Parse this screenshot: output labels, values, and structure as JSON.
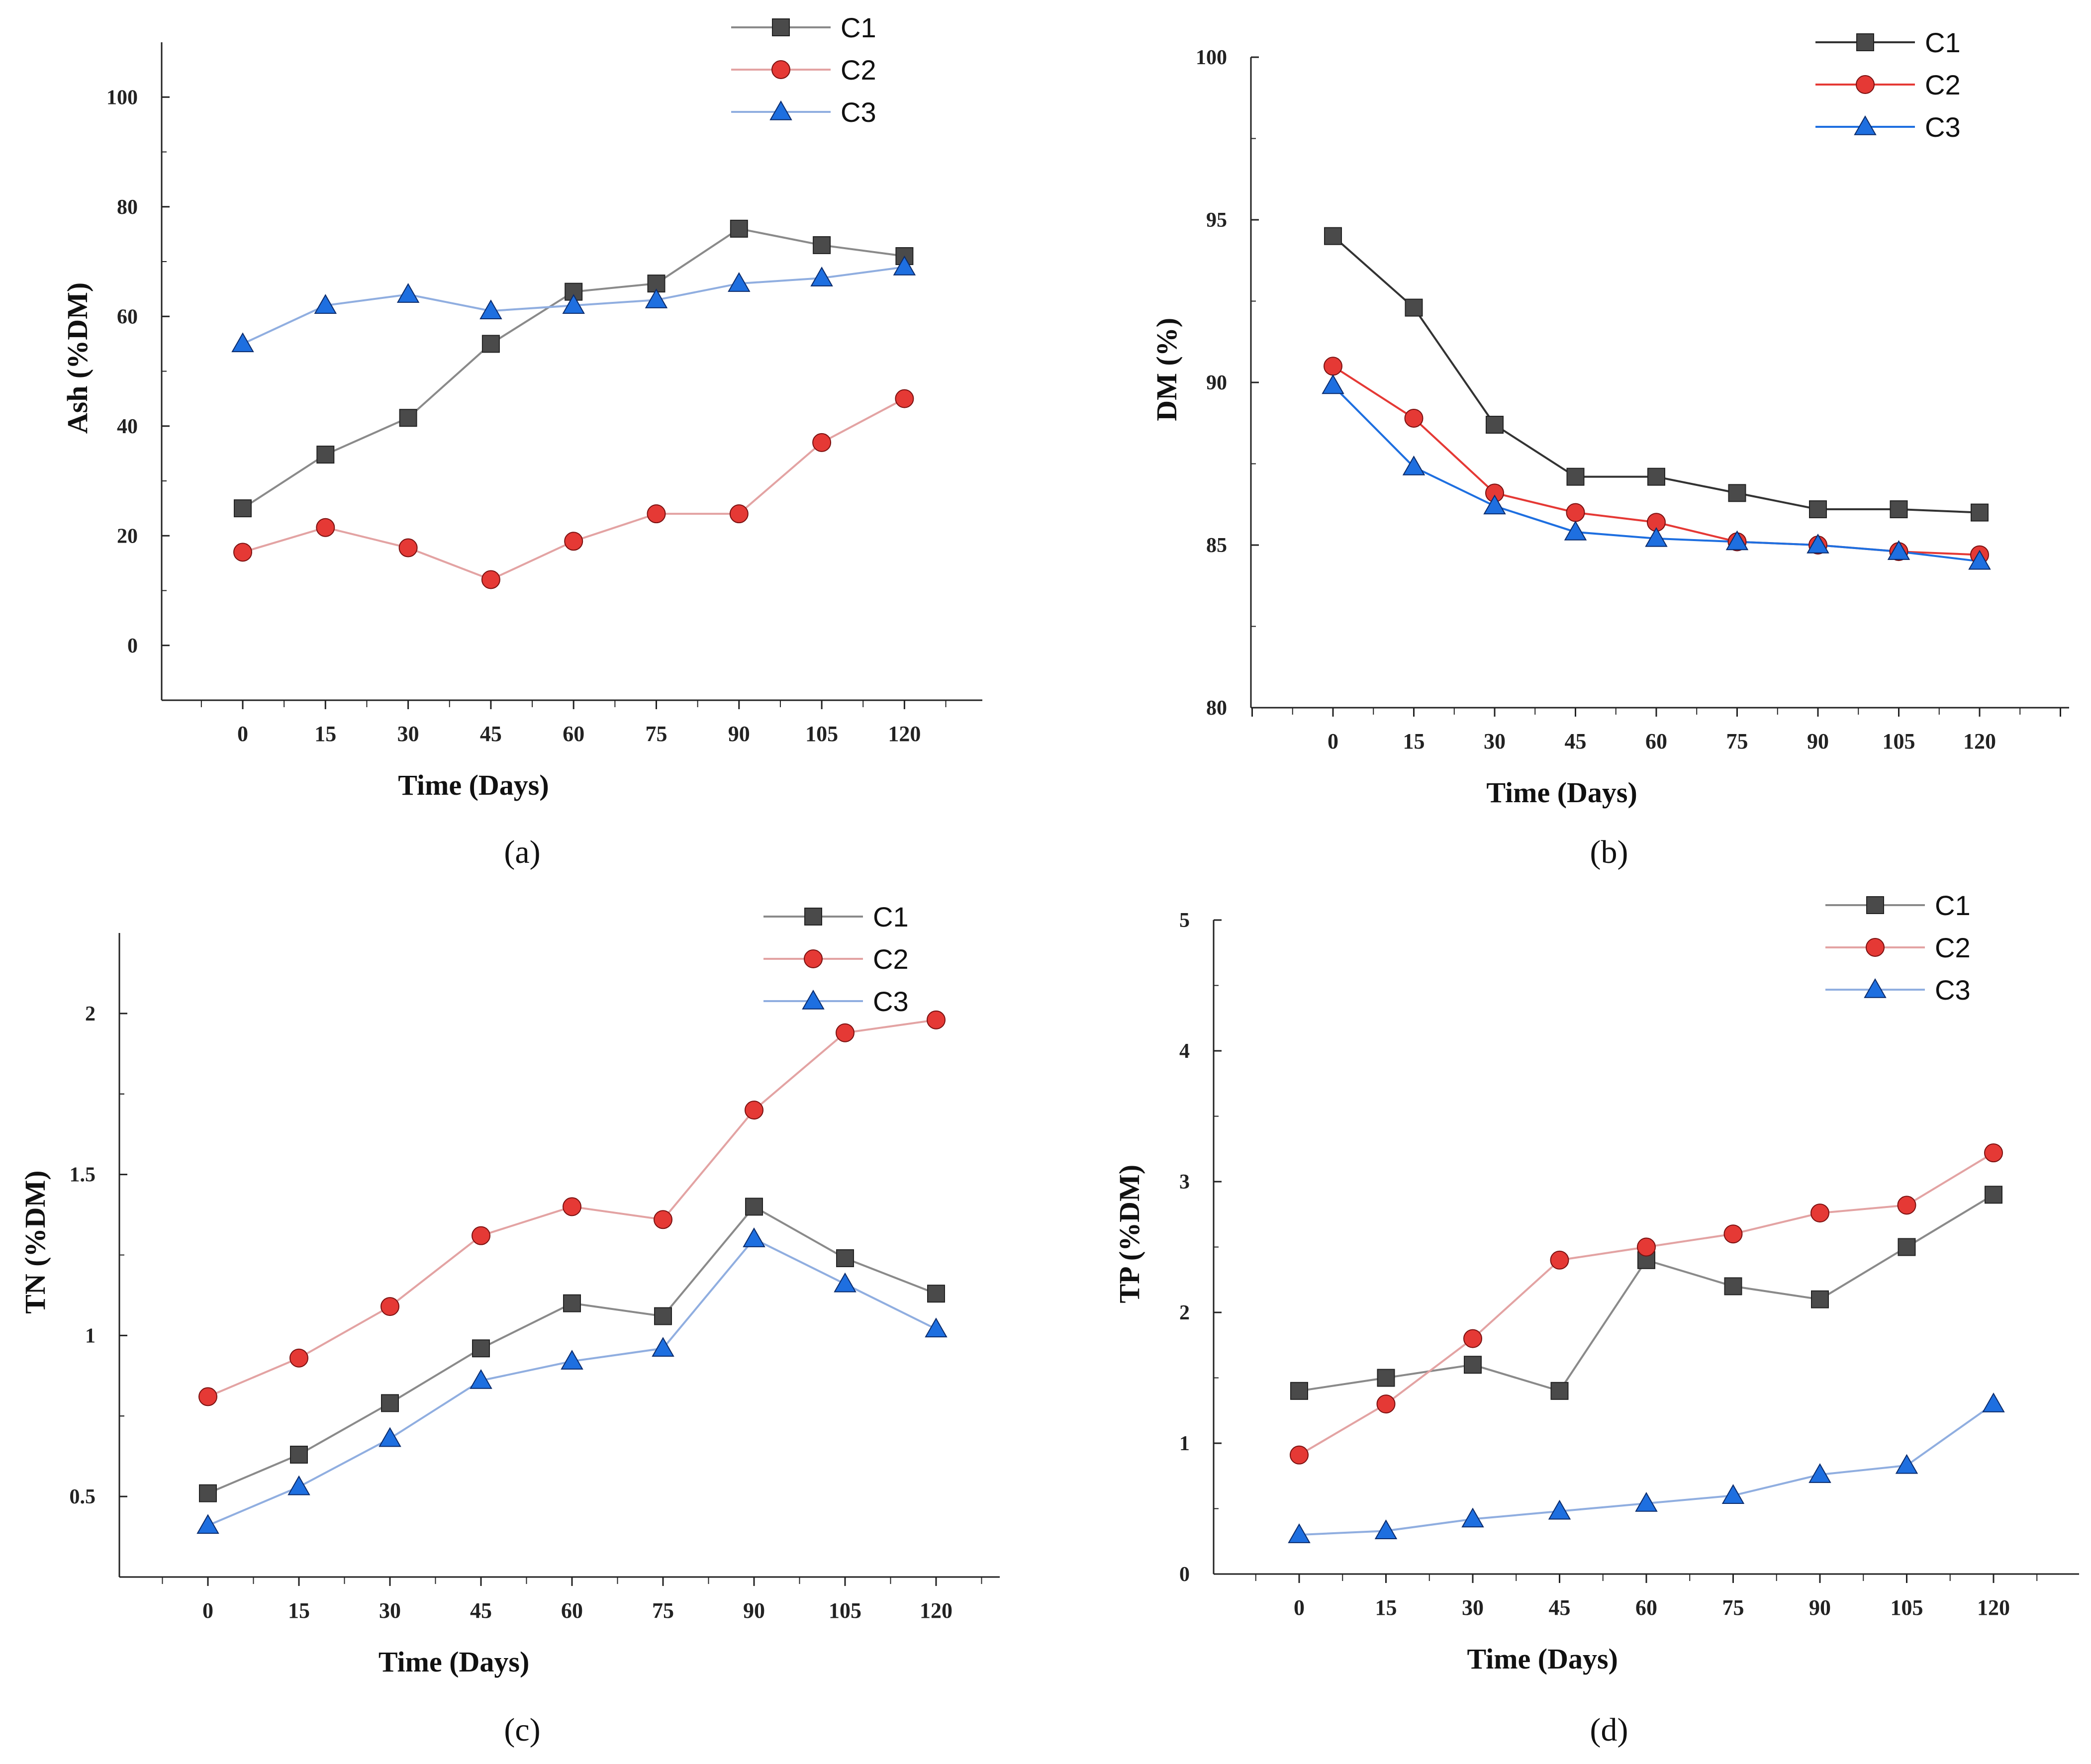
{
  "chart_data": [
    {
      "type": "line",
      "panel_label": "(a)",
      "xlabel": "Time (Days)",
      "ylabel": "Ash (%DM)",
      "categories": [
        "0",
        "15",
        "30",
        "45",
        "60",
        "75",
        "90",
        "105",
        "120"
      ],
      "ylim": [
        -10,
        110
      ],
      "yticks": [
        "0",
        "20",
        "40",
        "60",
        "80",
        "100"
      ],
      "legend_position": "top-right",
      "series": [
        {
          "name": "C1",
          "marker": "square",
          "line_color": "#8a8a8a",
          "marker_color": "#4a4a4a",
          "values": [
            25,
            34.8,
            41.5,
            55,
            64.5,
            66,
            76,
            73,
            71
          ]
        },
        {
          "name": "C2",
          "marker": "circle",
          "line_color": "#e3a3a3",
          "marker_color": "#e53935",
          "values": [
            17,
            21.5,
            17.8,
            12,
            19,
            24,
            24,
            37,
            45
          ]
        },
        {
          "name": "C3",
          "marker": "triangle",
          "line_color": "#90aee0",
          "marker_color": "#1e6fe0",
          "values": [
            55,
            62,
            64,
            61,
            62,
            63,
            66,
            67,
            69
          ]
        }
      ]
    },
    {
      "type": "line",
      "panel_label": "(b)",
      "xlabel": "Time (Days)",
      "ylabel": "DM (%)",
      "categories": [
        "0",
        "15",
        "30",
        "45",
        "60",
        "75",
        "90",
        "105",
        "120"
      ],
      "ylim": [
        80,
        100
      ],
      "yticks": [
        "80",
        "85",
        "90",
        "95",
        "100"
      ],
      "legend_position": "top-right",
      "series": [
        {
          "name": "C1",
          "marker": "square",
          "line_color": "#333333",
          "marker_color": "#4a4a4a",
          "values": [
            94.5,
            92.3,
            88.7,
            87.1,
            87.1,
            86.6,
            86.1,
            86.1,
            86
          ]
        },
        {
          "name": "C2",
          "marker": "circle",
          "line_color": "#e53935",
          "marker_color": "#e53935",
          "values": [
            90.5,
            88.9,
            86.6,
            86,
            85.7,
            85.1,
            85,
            84.8,
            84.7
          ]
        },
        {
          "name": "C3",
          "marker": "triangle",
          "line_color": "#1e6fe0",
          "marker_color": "#1e6fe0",
          "values": [
            89.9,
            87.4,
            86.2,
            85.4,
            85.2,
            85.1,
            85,
            84.8,
            84.5
          ]
        }
      ]
    },
    {
      "type": "line",
      "panel_label": "(c)",
      "xlabel": "Time (Days)",
      "ylabel": "TN (%DM)",
      "categories": [
        "0",
        "15",
        "30",
        "45",
        "60",
        "75",
        "90",
        "105",
        "120"
      ],
      "ylim": [
        0.25,
        2.25
      ],
      "yticks": [
        "0.5",
        "1",
        "1.5",
        "2"
      ],
      "legend_position": "top-right",
      "series": [
        {
          "name": "C1",
          "marker": "square",
          "line_color": "#8a8a8a",
          "marker_color": "#4a4a4a",
          "values": [
            0.51,
            0.63,
            0.79,
            0.96,
            1.1,
            1.06,
            1.4,
            1.24,
            1.13
          ]
        },
        {
          "name": "C2",
          "marker": "circle",
          "line_color": "#e3a3a3",
          "marker_color": "#e53935",
          "values": [
            0.81,
            0.93,
            1.09,
            1.31,
            1.4,
            1.36,
            1.7,
            1.94,
            1.98
          ]
        },
        {
          "name": "C3",
          "marker": "triangle",
          "line_color": "#90aee0",
          "marker_color": "#1e6fe0",
          "values": [
            0.41,
            0.53,
            0.68,
            0.86,
            0.92,
            0.96,
            1.3,
            1.16,
            1.02
          ]
        }
      ]
    },
    {
      "type": "line",
      "panel_label": "(d)",
      "xlabel": "Time (Days)",
      "ylabel": "TP (%DM)",
      "categories": [
        "0",
        "15",
        "30",
        "45",
        "60",
        "75",
        "90",
        "105",
        "120"
      ],
      "ylim": [
        0,
        5
      ],
      "yticks": [
        "0",
        "1",
        "2",
        "3",
        "4",
        "5"
      ],
      "legend_position": "top-right",
      "series": [
        {
          "name": "C1",
          "marker": "square",
          "line_color": "#8a8a8a",
          "marker_color": "#4a4a4a",
          "values": [
            1.4,
            1.5,
            1.6,
            1.4,
            2.4,
            2.2,
            2.1,
            2.5,
            2.9
          ]
        },
        {
          "name": "C2",
          "marker": "circle",
          "line_color": "#e3a3a3",
          "marker_color": "#e53935",
          "values": [
            0.91,
            1.3,
            1.8,
            2.4,
            2.5,
            2.6,
            2.76,
            2.82,
            3.22
          ]
        },
        {
          "name": "C3",
          "marker": "triangle",
          "line_color": "#90aee0",
          "marker_color": "#1e6fe0",
          "values": [
            0.3,
            0.33,
            0.42,
            0.48,
            0.54,
            0.6,
            0.76,
            0.83,
            1.3
          ]
        }
      ]
    }
  ]
}
